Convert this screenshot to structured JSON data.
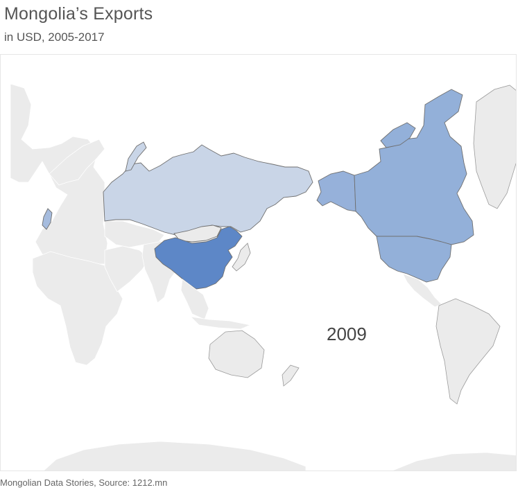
{
  "header": {
    "title": "Mongolia’s Exports",
    "subtitle": "in USD, 2005-2017"
  },
  "map": {
    "year_label": "2009",
    "colors": {
      "no_data": "#ebebeb",
      "lowest": "#c9d5e7",
      "low": "#a6bcde",
      "medium": "#96b1da",
      "high": "#93b0d9",
      "highest": "#5d87c7"
    },
    "highlighted_countries": [
      {
        "name": "China",
        "level": "highest"
      },
      {
        "name": "Canada",
        "level": "high"
      },
      {
        "name": "United States",
        "level": "high"
      },
      {
        "name": "Russia",
        "level": "lowest"
      },
      {
        "name": "United Kingdom",
        "level": "low"
      }
    ]
  },
  "footer": {
    "source": "Mongolian Data Stories, Source: 1212.mn"
  }
}
